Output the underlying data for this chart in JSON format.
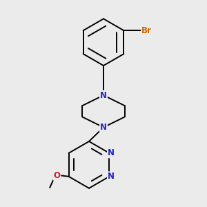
{
  "bg_color": "#ebebeb",
  "bond_color": "#000000",
  "N_color": "#2222cc",
  "O_color": "#cc2222",
  "Br_color": "#cc6600",
  "line_width": 1.4,
  "font_size_atom": 8.5,
  "figsize": [
    3.0,
    3.0
  ],
  "dpi": 100,
  "xlim": [
    0.05,
    0.95
  ],
  "ylim": [
    0.05,
    0.97
  ]
}
